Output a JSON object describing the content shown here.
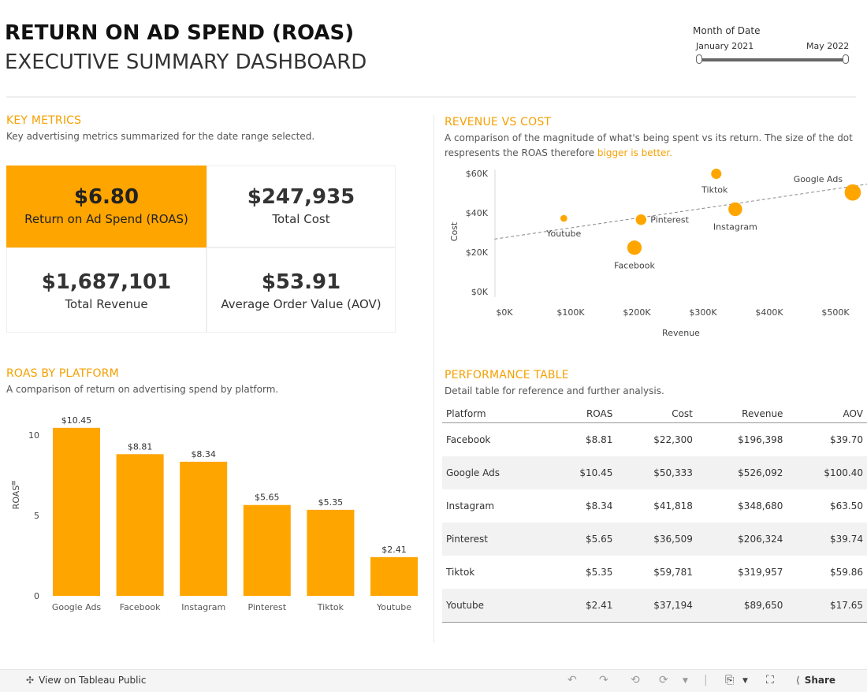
{
  "header": {
    "title_line1": "RETURN ON AD SPEND (ROAS)",
    "title_line2": "EXECUTIVE SUMMARY DASHBOARD"
  },
  "filter": {
    "label": "Month of Date",
    "start": "January 2021",
    "end": "May 2022"
  },
  "key_metrics": {
    "title": "KEY METRICS",
    "subtitle": "Key advertising metrics summarized for the date range selected.",
    "tiles": [
      {
        "value": "$6.80",
        "label": "Return on Ad Spend (ROAS)"
      },
      {
        "value": "$247,935",
        "label": "Total Cost"
      },
      {
        "value": "$1,687,101",
        "label": "Total Revenue"
      },
      {
        "value": "$53.91",
        "label": "Average Order Value (AOV)"
      }
    ]
  },
  "revenue_vs_cost": {
    "title": "REVENUE VS COST",
    "subtitle_line1": "A comparison of the magnitude of what's being spent vs its return. The size of the dot",
    "subtitle_line2_a": "respresents the ROAS therefore ",
    "subtitle_line2_b": "bigger is better."
  },
  "roas_by_platform": {
    "title": "ROAS BY PLATFORM",
    "subtitle": "A comparison of return on advertising spend by platform."
  },
  "performance_table": {
    "title": "PERFORMANCE TABLE",
    "subtitle": "Detail table for reference and further analysis.",
    "columns": [
      "Platform",
      "ROAS",
      "Cost",
      "Revenue",
      "AOV"
    ],
    "rows": [
      [
        "Facebook",
        "$8.81",
        "$22,300",
        "$196,398",
        "$39.70"
      ],
      [
        "Google Ads",
        "$10.45",
        "$50,333",
        "$526,092",
        "$100.40"
      ],
      [
        "Instagram",
        "$8.34",
        "$41,818",
        "$348,680",
        "$63.50"
      ],
      [
        "Pinterest",
        "$5.65",
        "$36,509",
        "$206,324",
        "$39.74"
      ],
      [
        "Tiktok",
        "$5.35",
        "$59,781",
        "$319,957",
        "$59.86"
      ],
      [
        "Youtube",
        "$2.41",
        "$37,194",
        "$89,650",
        "$17.65"
      ]
    ]
  },
  "bottom_bar": {
    "view_label": "View on Tableau Public",
    "share_label": "Share",
    "icons": [
      "tableau-logo-icon",
      "undo-icon",
      "redo-icon",
      "revert-icon",
      "refresh-icon",
      "pause-icon",
      "download-icon",
      "fullscreen-icon",
      "share-icon"
    ]
  },
  "colors": {
    "accent": "#ffa500",
    "title_accent": "#f5a000",
    "trendline": "#888888"
  },
  "chart_data": [
    {
      "type": "scatter",
      "title": "REVENUE VS COST",
      "xlabel": "Revenue",
      "ylabel": "Cost",
      "xlim": [
        0,
        540000
      ],
      "ylim": [
        0,
        65000
      ],
      "x_ticks": [
        0,
        100000,
        200000,
        300000,
        400000,
        500000
      ],
      "x_tick_labels": [
        "$0K",
        "$100K",
        "$200K",
        "$300K",
        "$400K",
        "$500K"
      ],
      "y_ticks": [
        0,
        20000,
        40000,
        60000
      ],
      "y_tick_labels": [
        "$0K",
        "$20K",
        "$40K",
        "$60K"
      ],
      "trendline": true,
      "points": [
        {
          "label": "Facebook",
          "x": 196398,
          "y": 22300,
          "size": 8.81
        },
        {
          "label": "Google Ads",
          "x": 526092,
          "y": 50333,
          "size": 10.45
        },
        {
          "label": "Instagram",
          "x": 348680,
          "y": 41818,
          "size": 8.34
        },
        {
          "label": "Pinterest",
          "x": 206324,
          "y": 36509,
          "size": 5.65
        },
        {
          "label": "Tiktok",
          "x": 319957,
          "y": 59781,
          "size": 5.35
        },
        {
          "label": "Youtube",
          "x": 89650,
          "y": 37194,
          "size": 2.41
        }
      ]
    },
    {
      "type": "bar",
      "title": "ROAS BY PLATFORM",
      "xlabel": "",
      "ylabel": "ROAS",
      "ylim": [
        0,
        11
      ],
      "y_ticks": [
        0,
        5,
        10
      ],
      "categories": [
        "Google Ads",
        "Facebook",
        "Instagram",
        "Pinterest",
        "Tiktok",
        "Youtube"
      ],
      "values": [
        10.45,
        8.81,
        8.34,
        5.65,
        5.35,
        2.41
      ],
      "value_labels": [
        "$10.45",
        "$8.81",
        "$8.34",
        "$5.65",
        "$5.35",
        "$2.41"
      ]
    }
  ]
}
